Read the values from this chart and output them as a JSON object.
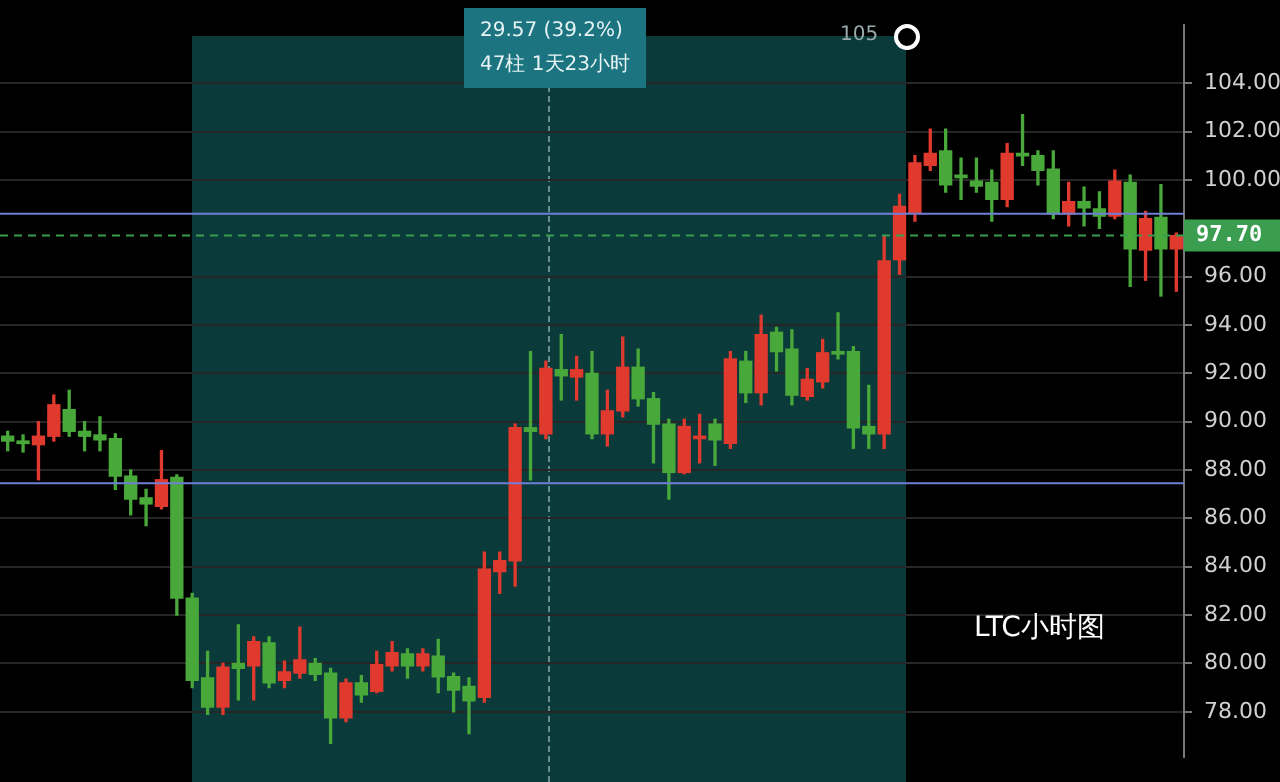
{
  "chart_data": {
    "type": "candlestick",
    "categories": [
      null,
      null,
      null,
      null,
      null,
      null,
      null,
      null,
      null,
      null,
      null,
      null,
      null,
      null,
      null,
      null,
      null,
      null,
      null,
      null,
      null,
      null,
      null,
      null,
      null,
      null,
      null,
      null,
      null,
      null,
      null,
      null,
      null,
      null,
      null,
      null,
      null,
      null,
      null,
      null,
      null,
      null,
      null,
      null,
      null,
      null,
      null,
      null,
      null,
      null,
      null,
      null,
      null,
      null,
      null,
      null,
      null,
      null,
      null,
      null,
      null,
      null,
      null,
      null,
      null,
      null,
      null,
      null,
      null,
      null,
      null,
      null,
      null,
      null,
      null,
      null,
      null
    ],
    "ohlc": [
      [
        89.4,
        89.6,
        88.8,
        89.2
      ],
      [
        89.2,
        89.45,
        88.75,
        89.1
      ],
      [
        89.05,
        90.0,
        87.6,
        89.4
      ],
      [
        89.4,
        91.1,
        89.2,
        90.7
      ],
      [
        90.5,
        91.3,
        89.4,
        89.6
      ],
      [
        89.6,
        90.0,
        88.8,
        89.4
      ],
      [
        89.45,
        90.2,
        88.8,
        89.25
      ],
      [
        89.3,
        89.5,
        87.2,
        87.75
      ],
      [
        87.75,
        88.0,
        86.15,
        86.8
      ],
      [
        86.85,
        87.2,
        85.7,
        86.6
      ],
      [
        86.5,
        88.8,
        86.4,
        87.6
      ],
      [
        87.7,
        87.8,
        82.0,
        82.7
      ],
      [
        82.7,
        82.9,
        79.0,
        79.3
      ],
      [
        79.4,
        80.5,
        77.9,
        78.2
      ],
      [
        78.2,
        80.0,
        77.9,
        79.85
      ],
      [
        80.0,
        81.6,
        78.5,
        79.8
      ],
      [
        79.9,
        81.1,
        78.5,
        80.9
      ],
      [
        80.85,
        81.1,
        79.0,
        79.2
      ],
      [
        79.3,
        80.1,
        79.0,
        79.65
      ],
      [
        79.6,
        81.5,
        79.4,
        80.15
      ],
      [
        80.0,
        80.2,
        79.3,
        79.55
      ],
      [
        79.6,
        79.8,
        76.7,
        77.75
      ],
      [
        77.75,
        79.35,
        77.6,
        79.2
      ],
      [
        79.2,
        79.5,
        78.4,
        78.7
      ],
      [
        78.85,
        80.5,
        78.8,
        79.95
      ],
      [
        79.9,
        80.9,
        79.7,
        80.45
      ],
      [
        80.4,
        80.6,
        79.4,
        79.9
      ],
      [
        79.9,
        80.6,
        79.7,
        80.4
      ],
      [
        80.3,
        81.0,
        78.8,
        79.45
      ],
      [
        79.45,
        79.6,
        78.0,
        78.9
      ],
      [
        79.05,
        79.4,
        77.1,
        78.45
      ],
      [
        78.6,
        84.6,
        78.4,
        83.9
      ],
      [
        83.8,
        84.6,
        82.9,
        84.25
      ],
      [
        84.25,
        89.9,
        83.2,
        89.75
      ],
      [
        89.75,
        92.9,
        87.6,
        89.6
      ],
      [
        89.5,
        92.5,
        89.3,
        92.2
      ],
      [
        92.15,
        93.6,
        90.9,
        91.9
      ],
      [
        91.85,
        92.7,
        90.9,
        92.15
      ],
      [
        92.0,
        92.9,
        89.3,
        89.5
      ],
      [
        89.5,
        91.3,
        89.0,
        90.45
      ],
      [
        90.45,
        93.5,
        90.2,
        92.25
      ],
      [
        92.25,
        93.0,
        90.65,
        90.95
      ],
      [
        90.95,
        91.2,
        88.3,
        89.9
      ],
      [
        89.9,
        90.1,
        86.8,
        87.9
      ],
      [
        87.9,
        90.1,
        87.85,
        89.8
      ],
      [
        89.3,
        90.3,
        88.3,
        89.4
      ],
      [
        89.9,
        90.1,
        88.2,
        89.25
      ],
      [
        89.1,
        92.9,
        88.9,
        92.6
      ],
      [
        92.5,
        92.9,
        90.8,
        91.2
      ],
      [
        91.2,
        94.4,
        90.7,
        93.6
      ],
      [
        93.7,
        93.9,
        92.1,
        92.9
      ],
      [
        93.0,
        93.8,
        90.7,
        91.1
      ],
      [
        91.05,
        92.2,
        90.9,
        91.75
      ],
      [
        91.65,
        93.4,
        91.4,
        92.85
      ],
      [
        92.9,
        94.5,
        92.6,
        92.8
      ],
      [
        92.9,
        93.1,
        88.9,
        89.75
      ],
      [
        89.8,
        91.5,
        88.9,
        89.5
      ],
      [
        89.5,
        97.7,
        88.9,
        96.65
      ],
      [
        96.7,
        99.4,
        96.1,
        98.9
      ],
      [
        98.65,
        101.0,
        98.3,
        100.7
      ],
      [
        100.6,
        102.1,
        100.4,
        101.1
      ],
      [
        101.2,
        102.1,
        99.5,
        99.8
      ],
      [
        100.2,
        100.9,
        99.2,
        100.1
      ],
      [
        99.95,
        100.9,
        99.5,
        99.75
      ],
      [
        99.9,
        100.4,
        98.3,
        99.2
      ],
      [
        99.2,
        101.5,
        98.9,
        101.1
      ],
      [
        101.1,
        102.7,
        100.6,
        101.0
      ],
      [
        101.0,
        101.2,
        99.8,
        100.4
      ],
      [
        100.45,
        101.2,
        98.4,
        98.6
      ],
      [
        98.6,
        99.9,
        98.1,
        99.1
      ],
      [
        99.1,
        99.7,
        98.1,
        98.85
      ],
      [
        98.8,
        99.5,
        98.0,
        98.5
      ],
      [
        98.5,
        100.4,
        98.4,
        99.95
      ],
      [
        99.9,
        100.2,
        95.6,
        97.15
      ],
      [
        97.1,
        98.7,
        95.85,
        98.4
      ],
      [
        98.45,
        99.8,
        95.2,
        97.15
      ],
      [
        97.15,
        97.8,
        95.4,
        97.7
      ]
    ],
    "colors": [
      "#49a83a",
      "#49a83a",
      "#e0392e",
      "#e0392e",
      "#49a83a",
      "#49a83a",
      "#49a83a",
      "#49a83a",
      "#49a83a",
      "#49a83a",
      "#e0392e",
      "#49a83a",
      "#49a83a",
      "#49a83a",
      "#e0392e",
      "#49a83a",
      "#e0392e",
      "#49a83a",
      "#e0392e",
      "#e0392e",
      "#49a83a",
      "#49a83a",
      "#e0392e",
      "#49a83a",
      "#e0392e",
      "#e0392e",
      "#49a83a",
      "#e0392e",
      "#49a83a",
      "#49a83a",
      "#49a83a",
      "#e0392e",
      "#e0392e",
      "#e0392e",
      "#49a83a",
      "#e0392e",
      "#49a83a",
      "#e0392e",
      "#49a83a",
      "#e0392e",
      "#e0392e",
      "#49a83a",
      "#49a83a",
      "#49a83a",
      "#e0392e",
      "#e0392e",
      "#49a83a",
      "#e0392e",
      "#49a83a",
      "#e0392e",
      "#49a83a",
      "#49a83a",
      "#e0392e",
      "#e0392e",
      "#49a83a",
      "#49a83a",
      "#49a83a",
      "#e0392e",
      "#e0392e",
      "#e0392e",
      "#e0392e",
      "#49a83a",
      "#49a83a",
      "#49a83a",
      "#49a83a",
      "#e0392e",
      "#49a83a",
      "#49a83a",
      "#49a83a",
      "#e0392e",
      "#49a83a",
      "#49a83a",
      "#e0392e",
      "#49a83a",
      "#e0392e",
      "#49a83a",
      "#e0392e"
    ],
    "ylim": [
      76.14,
      106.4
    ],
    "yticks": [
      {
        "value": 78,
        "label": "78.00"
      },
      {
        "value": 80,
        "label": "80.00"
      },
      {
        "value": 82,
        "label": "82.00"
      },
      {
        "value": 84,
        "label": "84.00"
      },
      {
        "value": 86,
        "label": "86.00"
      },
      {
        "value": 88,
        "label": "88.00"
      },
      {
        "value": 90,
        "label": "90.00"
      },
      {
        "value": 92,
        "label": "92.00"
      },
      {
        "value": 94,
        "label": "94.00"
      },
      {
        "value": 96,
        "label": "96.00"
      },
      {
        "value": 100,
        "label": "100.00"
      },
      {
        "value": 102,
        "label": "102.00"
      },
      {
        "value": 104,
        "label": "104.00"
      }
    ],
    "grid": "y",
    "tick_labels": "y",
    "legend": false,
    "ref_lines": [
      {
        "axis": "y",
        "value": 98.6,
        "color": "#6f7fd8"
      },
      {
        "axis": "y",
        "value": 87.45,
        "color": "#6f7fd8"
      },
      {
        "axis": "y",
        "value": 97.7,
        "label": "97.70",
        "color": "#3a9d4f",
        "line_style": "dashed"
      }
    ],
    "annotations": [
      "29.57 (39.2%)",
      "47柱 1天23小时",
      "105",
      "LTC小时图"
    ]
  }
}
